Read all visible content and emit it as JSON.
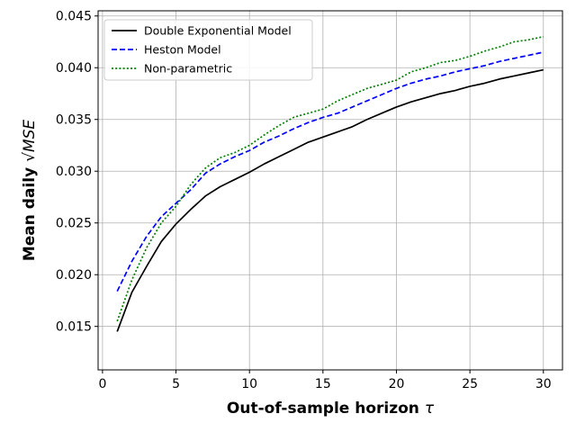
{
  "chart_data": {
    "type": "line",
    "title": "",
    "xlabel": "Out-of-sample horizon",
    "xlabel_symbol": "τ",
    "ylabel": "Mean daily",
    "ylabel_symbol": "√MSE",
    "xlim": [
      -0.3,
      31.3
    ],
    "ylim": [
      0.0108,
      0.0455
    ],
    "xticks": [
      0,
      5,
      10,
      15,
      20,
      25,
      30
    ],
    "yticks": [
      0.015,
      0.02,
      0.025,
      0.03,
      0.035,
      0.04,
      0.045
    ],
    "ytick_labels": [
      "0.015",
      "0.020",
      "0.025",
      "0.030",
      "0.035",
      "0.040",
      "0.045"
    ],
    "grid": true,
    "legend_position": "top-left",
    "x": [
      1,
      2,
      3,
      4,
      5,
      6,
      7,
      8,
      9,
      10,
      11,
      12,
      13,
      14,
      15,
      16,
      17,
      18,
      19,
      20,
      21,
      22,
      23,
      24,
      25,
      26,
      27,
      28,
      29,
      30
    ],
    "series": [
      {
        "name": "Double Exponential Model",
        "color": "#000000",
        "dash": "solid",
        "values": [
          0.0145,
          0.0183,
          0.0208,
          0.0232,
          0.0249,
          0.0263,
          0.0276,
          0.0285,
          0.0292,
          0.0299,
          0.0307,
          0.0314,
          0.0321,
          0.0328,
          0.0333,
          0.0338,
          0.0343,
          0.035,
          0.0356,
          0.0362,
          0.0367,
          0.0371,
          0.0375,
          0.0378,
          0.0382,
          0.0385,
          0.0389,
          0.0392,
          0.0395,
          0.0398
        ]
      },
      {
        "name": "Heston Model",
        "color": "#0000ff",
        "dash": "dashed",
        "values": [
          0.0184,
          0.0213,
          0.0237,
          0.0256,
          0.0269,
          0.0282,
          0.0298,
          0.0307,
          0.0314,
          0.032,
          0.0328,
          0.0334,
          0.0341,
          0.0347,
          0.0352,
          0.0356,
          0.0362,
          0.0368,
          0.0374,
          0.038,
          0.0385,
          0.0389,
          0.0392,
          0.0396,
          0.0399,
          0.0402,
          0.0406,
          0.0409,
          0.0412,
          0.0415
        ]
      },
      {
        "name": "Non-parametric",
        "color": "#008000",
        "dash": "dotted",
        "values": [
          0.0155,
          0.0195,
          0.0226,
          0.025,
          0.0266,
          0.0287,
          0.0303,
          0.0313,
          0.0318,
          0.0325,
          0.0335,
          0.0344,
          0.0352,
          0.0356,
          0.036,
          0.0368,
          0.0374,
          0.038,
          0.0384,
          0.0388,
          0.0396,
          0.04,
          0.0405,
          0.0407,
          0.0411,
          0.0416,
          0.042,
          0.0425,
          0.0427,
          0.043
        ]
      }
    ]
  }
}
